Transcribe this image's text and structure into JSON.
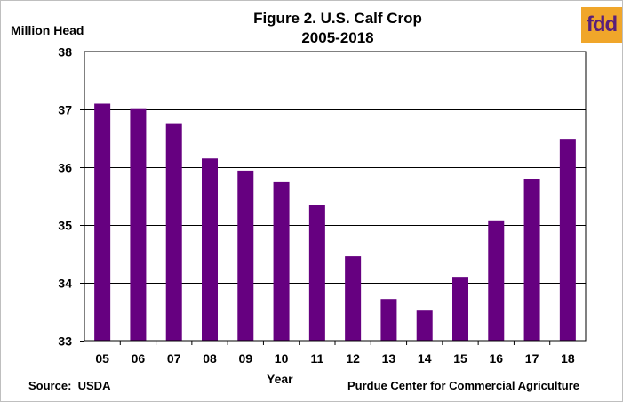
{
  "logo": {
    "text": "fdd"
  },
  "chart_data": {
    "type": "bar",
    "title": [
      "Figure 2. U.S. Calf Crop",
      "2005-2018"
    ],
    "ylabel": "Million Head",
    "xlabel": "Year",
    "categories": [
      "05",
      "06",
      "07",
      "08",
      "09",
      "10",
      "11",
      "12",
      "13",
      "14",
      "15",
      "16",
      "17",
      "18"
    ],
    "values": [
      37.1,
      37.02,
      36.76,
      36.15,
      35.94,
      35.74,
      35.35,
      34.46,
      33.72,
      33.52,
      34.09,
      35.08,
      35.8,
      36.49
    ],
    "ylim": [
      33,
      38
    ],
    "yticks": [
      "33",
      "34",
      "35",
      "36",
      "37",
      "38"
    ],
    "grid": true,
    "bar_color": "#660080",
    "source": "Source:  USDA",
    "credit": "Purdue Center for Commercial Agriculture"
  }
}
